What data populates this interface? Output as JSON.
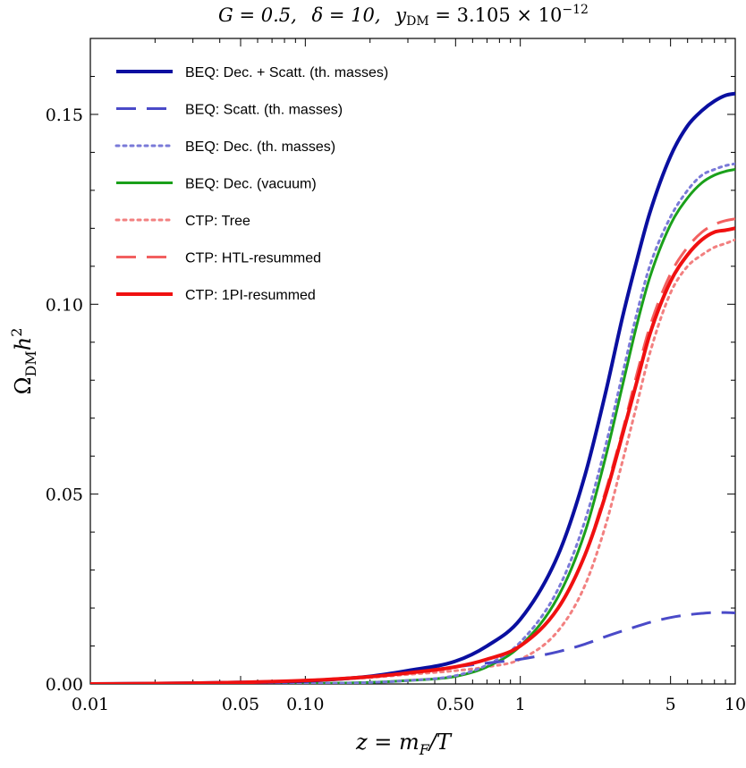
{
  "chart_data": {
    "type": "line",
    "title": "G = 0.5,  δ = 10,  y_DM = 3.105 × 10^−12",
    "title_parts": {
      "g": "G = 0.5,",
      "delta": "δ = 10,",
      "y": "y",
      "y_sub": "DM",
      "y_rest": " = 3.105 × 10",
      "y_exp": "−12"
    },
    "xlabel": "z = m_F/T",
    "xlabel_parts": {
      "z": "z = m",
      "sub": "F",
      "rest": "/T"
    },
    "ylabel": "Ω_DM h^2",
    "ylabel_parts": {
      "omega": "Ω",
      "sub": "DM",
      "h": "h",
      "sup": "2"
    },
    "x_scale": "log",
    "xlim": [
      0.01,
      10
    ],
    "ylim": [
      0,
      0.17
    ],
    "x_ticks": [
      {
        "v": 0.01,
        "label": "0.01"
      },
      {
        "v": 0.05,
        "label": "0.05"
      },
      {
        "v": 0.1,
        "label": "0.10"
      },
      {
        "v": 0.5,
        "label": "0.50"
      },
      {
        "v": 1,
        "label": "1"
      },
      {
        "v": 5,
        "label": "5"
      },
      {
        "v": 10,
        "label": "10"
      }
    ],
    "y_ticks": [
      {
        "v": 0.0,
        "label": "0.00"
      },
      {
        "v": 0.05,
        "label": "0.05"
      },
      {
        "v": 0.1,
        "label": "0.10"
      },
      {
        "v": 0.15,
        "label": "0.15"
      }
    ],
    "grid": false,
    "legend_position": "top-left",
    "x": [
      0.01,
      0.03,
      0.05,
      0.1,
      0.2,
      0.3,
      0.5,
      0.7,
      1,
      1.5,
      2,
      2.5,
      3,
      3.5,
      4,
      5,
      6,
      7,
      8,
      9,
      10
    ],
    "series": [
      {
        "name": "BEQ: Dec. + Scatt. (th. masses)",
        "color": "#0a0fa0",
        "dash": "solid",
        "width": 4,
        "values": [
          0,
          0.0002,
          0.0004,
          0.0008,
          0.002,
          0.0035,
          0.006,
          0.01,
          0.017,
          0.034,
          0.055,
          0.077,
          0.097,
          0.112,
          0.124,
          0.139,
          0.147,
          0.151,
          0.1535,
          0.155,
          0.1555
        ]
      },
      {
        "name": "BEQ: Scatt. (th. masses)",
        "color": "#4a4ac8",
        "dash": "long-dash",
        "width": 3,
        "values": [
          0,
          0.0002,
          0.0004,
          0.0008,
          0.0019,
          0.003,
          0.0045,
          0.0055,
          0.0065,
          0.0085,
          0.0105,
          0.0125,
          0.014,
          0.0152,
          0.0162,
          0.0175,
          0.0182,
          0.0186,
          0.0188,
          0.0188,
          0.0187
        ]
      },
      {
        "name": "BEQ: Dec. (th. masses)",
        "color": "#7a7ad8",
        "dash": "dotted",
        "width": 3,
        "values": [
          0,
          0,
          0,
          0.0001,
          0.0004,
          0.0009,
          0.0022,
          0.005,
          0.011,
          0.025,
          0.043,
          0.063,
          0.082,
          0.098,
          0.11,
          0.123,
          0.13,
          0.134,
          0.1355,
          0.1365,
          0.137
        ]
      },
      {
        "name": "BEQ: Dec. (vacuum)",
        "color": "#1aa01a",
        "dash": "solid",
        "width": 3,
        "values": [
          0,
          0,
          0,
          0.0001,
          0.0004,
          0.0009,
          0.002,
          0.0045,
          0.01,
          0.023,
          0.04,
          0.06,
          0.079,
          0.095,
          0.107,
          0.121,
          0.128,
          0.132,
          0.134,
          0.135,
          0.1355
        ]
      },
      {
        "name": "CTP: Tree",
        "color": "#f28080",
        "dash": "dotted",
        "width": 3,
        "values": [
          0,
          0.0002,
          0.0004,
          0.0008,
          0.0017,
          0.0025,
          0.0035,
          0.0045,
          0.0065,
          0.014,
          0.026,
          0.042,
          0.059,
          0.074,
          0.087,
          0.103,
          0.11,
          0.113,
          0.115,
          0.116,
          0.117
        ]
      },
      {
        "name": "CTP: HTL-resummed",
        "color": "#f26060",
        "dash": "long-dash",
        "width": 3,
        "values": [
          0,
          0.0002,
          0.0004,
          0.0009,
          0.0019,
          0.0029,
          0.0045,
          0.0065,
          0.01,
          0.02,
          0.034,
          0.051,
          0.067,
          0.082,
          0.094,
          0.108,
          0.115,
          0.119,
          0.121,
          0.122,
          0.1225
        ]
      },
      {
        "name": "CTP: 1PI-resummed",
        "color": "#f01010",
        "dash": "solid",
        "width": 4,
        "values": [
          0,
          0.0002,
          0.0004,
          0.0009,
          0.0019,
          0.0029,
          0.0045,
          0.0065,
          0.01,
          0.02,
          0.034,
          0.05,
          0.066,
          0.08,
          0.092,
          0.106,
          0.113,
          0.117,
          0.119,
          0.1195,
          0.12
        ]
      }
    ]
  }
}
